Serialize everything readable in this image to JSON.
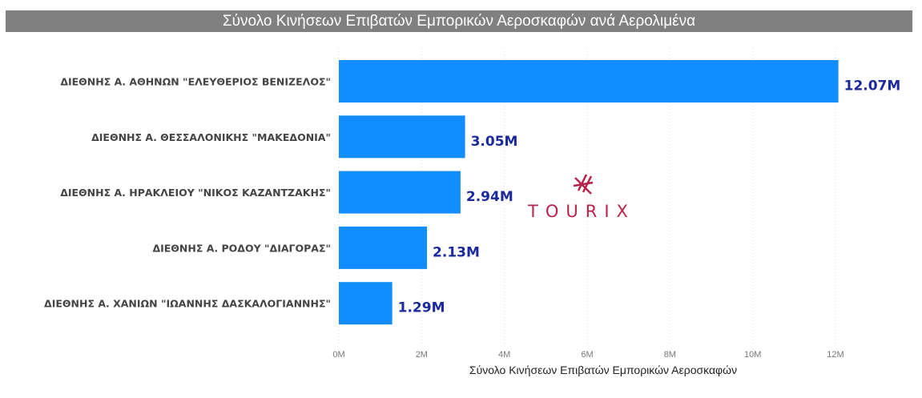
{
  "chart_data": {
    "type": "bar",
    "orientation": "horizontal",
    "title": "Σύνολο Κινήσεων Επιβατών Εμπορικών Αεροσκαφών ανά Αερολιμένα",
    "categories": [
      "ΔΙΕΘΝΗΣ Α. ΑΘΗΝΩΝ \"ΕΛΕΥΘΕΡΙΟΣ ΒΕΝΙΖΕΛΟΣ\"",
      "ΔΙΕΘΝΗΣ Α. ΘΕΣΣΑΛΟΝΙΚΗΣ \"ΜΑΚΕΔΟΝΙΑ\"",
      "ΔΙΕΘΝΗΣ Α. ΗΡΑΚΛΕΙΟΥ \"ΝΙΚΟΣ ΚΑΖΑΝΤΖΑΚΗΣ\"",
      "ΔΙΕΘΝΗΣ Α. ΡΟΔΟΥ \"ΔΙΑΓΟΡΑΣ\"",
      "ΔΙΕΘΝΗΣ Α. ΧΑΝΙΩΝ \"ΙΩΑΝΝΗΣ ΔΑΣΚΑΛΟΓΙΑΝΝΗΣ\""
    ],
    "values": [
      12070000,
      3050000,
      2940000,
      2130000,
      1290000
    ],
    "data_labels": [
      "12.07M",
      "3.05M",
      "2.94M",
      "2.13M",
      "1.29M"
    ],
    "xlabel": "Σύνολο Κινήσεων Επιβατών Εμπορικών Αεροσκαφών",
    "ylabel": "",
    "xlim": [
      0,
      12000000
    ],
    "xticks": [
      0,
      2000000,
      4000000,
      6000000,
      8000000,
      10000000,
      12000000
    ],
    "xtick_labels": [
      "0M",
      "2M",
      "4M",
      "6M",
      "8M",
      "10M",
      "12M"
    ],
    "grid": "vertical dotted",
    "bar_color": "#118DFF",
    "label_color": "#1a2a9c"
  },
  "watermark": "TOURIX",
  "watermark_color": "#b8234a"
}
